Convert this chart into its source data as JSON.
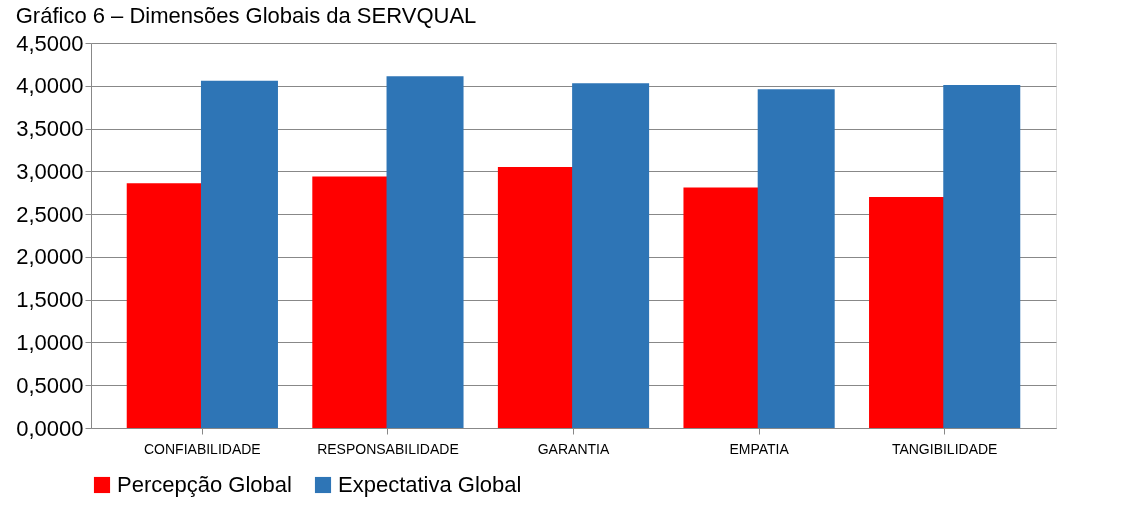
{
  "chart_data": {
    "type": "bar",
    "title": "Gráfico 6 – Dimensões Globais da SERVQUAL",
    "categories": [
      "CONFIABILIDADE",
      "RESPONSABILIDADE",
      "GARANTIA",
      "EMPATIA",
      "TANGIBILIDADE"
    ],
    "series": [
      {
        "name": "Percepção Global",
        "color": "#ff0000",
        "values": [
          2.86,
          2.94,
          3.05,
          2.81,
          2.7
        ]
      },
      {
        "name": "Expectativa Global",
        "color": "#2e75b6",
        "values": [
          4.06,
          4.11,
          4.03,
          3.96,
          4.01
        ]
      }
    ],
    "ylim": [
      0,
      4.5
    ],
    "yticks": [
      {
        "value": 0,
        "label": "0,0000"
      },
      {
        "value": 0.5,
        "label": "0,5000"
      },
      {
        "value": 1,
        "label": "1,0000"
      },
      {
        "value": 1.5,
        "label": "1,5000"
      },
      {
        "value": 2,
        "label": "2,0000"
      },
      {
        "value": 2.5,
        "label": "2,5000"
      },
      {
        "value": 3,
        "label": "3,0000"
      },
      {
        "value": 3.5,
        "label": "3,5000"
      },
      {
        "value": 4,
        "label": "4,0000"
      },
      {
        "value": 4.5,
        "label": "4,5000"
      }
    ],
    "grid": "y",
    "legend": "bottom"
  }
}
